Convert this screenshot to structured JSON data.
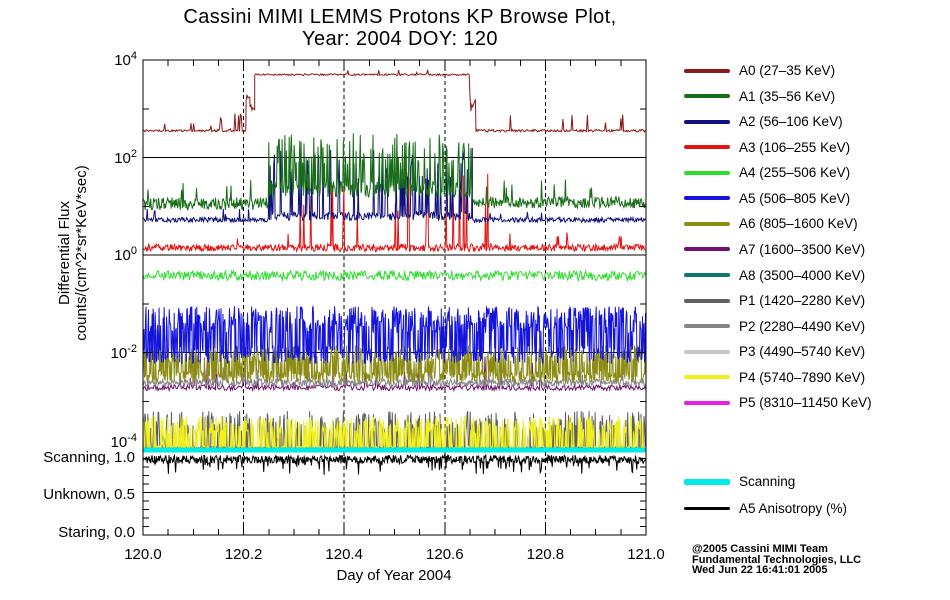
{
  "title": {
    "line1": "Cassini MIMI LEMMS Protons KP Browse Plot,",
    "line2": "Year: 2004 DOY: 120"
  },
  "axes": {
    "flux": {
      "label_line1": "Differential Flux",
      "label_line2": "counts/(cm^2*sr*KeV*sec)",
      "ticks": [
        {
          "exp": "4",
          "v": 4
        },
        {
          "exp": "2",
          "v": 2
        },
        {
          "exp": "0",
          "v": 0
        },
        {
          "exp": "-2",
          "v": -2
        },
        {
          "exp": "-4",
          "v": -4
        }
      ]
    },
    "anisotropy": {
      "ticks": [
        {
          "label": "Scanning, 1.0",
          "v": 1.0
        },
        {
          "label": "Unknown, 0.5",
          "v": 0.5
        },
        {
          "label": "Staring, 0.0",
          "v": 0.0
        }
      ]
    },
    "x": {
      "label": "Day of Year 2004",
      "ticks": [
        {
          "label": "120.0",
          "v": 120.0
        },
        {
          "label": "120.2",
          "v": 120.2
        },
        {
          "label": "120.4",
          "v": 120.4
        },
        {
          "label": "120.6",
          "v": 120.6
        },
        {
          "label": "120.8",
          "v": 120.8
        },
        {
          "label": "121.0",
          "v": 121.0
        }
      ]
    }
  },
  "legend": {
    "entries": [
      {
        "label": "A0 (27–35 KeV)",
        "color": "#8B1A1A"
      },
      {
        "label": "A1 (35–56 KeV)",
        "color": "#176E17"
      },
      {
        "label": "A2 (56–106 KeV)",
        "color": "#10107E"
      },
      {
        "label": "A3 (106–255 KeV)",
        "color": "#E31414"
      },
      {
        "label": "A4 (255–506 KeV)",
        "color": "#2EDE2E"
      },
      {
        "label": "A5 (506–805 KeV)",
        "color": "#1414DC"
      },
      {
        "label": "A6 (805–1600 KeV)",
        "color": "#8C8C14"
      },
      {
        "label": "A7 (1600–3500 KeV)",
        "color": "#701070"
      },
      {
        "label": "A8 (3500–4000 KeV)",
        "color": "#0F7474"
      },
      {
        "label": "P1 (1420–2280 KeV)",
        "color": "#5F5F5F"
      },
      {
        "label": "P2 (2280–4490 KeV)",
        "color": "#858585"
      },
      {
        "label": "P3 (4490–5740 KeV)",
        "color": "#C6C6C6"
      },
      {
        "label": "P4 (5740–7890 KeV)",
        "color": "#F0F01E"
      },
      {
        "label": "P5 (8310–11450 KeV)",
        "color": "#E61EE6"
      }
    ],
    "extra": [
      {
        "label": "Scanning",
        "color": "#00E8E8",
        "thick": 6
      },
      {
        "label": "A5 Anisotropy (%)",
        "color": "#000000",
        "thick": 3
      }
    ]
  },
  "credit": {
    "line1": "@2005 Cassini MIMI Team",
    "line2": "Fundamental Technologies, LLC",
    "line3": "Wed Jun 22 16:41:01 2005"
  },
  "chart_data": {
    "type": "line",
    "title": "Cassini MIMI LEMMS Protons KP Browse Plot, Year: 2004 DOY: 120",
    "xlabel": "Day of Year 2004",
    "x_range": [
      120.0,
      121.0
    ],
    "x_major_ticks": [
      120.0,
      120.2,
      120.4,
      120.6,
      120.8,
      121.0
    ],
    "x_minor_step": 0.05,
    "grid": {
      "v_dashed": [
        120.2,
        120.4,
        120.6,
        120.8
      ]
    },
    "panels": [
      {
        "id": "flux",
        "yscale": "log",
        "ylim_log10": [
          -4,
          4
        ],
        "ylabel": "Differential Flux counts/(cm^2*sr*KeV*sec)",
        "h_gridlines_log10": [
          2,
          0,
          -2
        ],
        "series": [
          {
            "name": "A0 (27–35 KeV)",
            "color": "#8B1A1A",
            "z": 14,
            "step": 0.0018,
            "segments": [
              {
                "x": [
                  120.0,
                  120.145
                ],
                "base": 2.55,
                "noise": 0.02,
                "spike_p": 0.05,
                "spike_hi": 2.72
              },
              {
                "x": [
                  120.145,
                  120.205
                ],
                "base": 2.56,
                "noise": 0.03,
                "spike_p": 0.2,
                "spike_hi": 2.95
              },
              {
                "x": [
                  120.205,
                  120.213
                ],
                "base": 3.25,
                "noise": 0.12
              },
              {
                "x": [
                  120.213,
                  120.222
                ],
                "base": 3.05,
                "noise": 0.1
              },
              {
                "x": [
                  120.222,
                  120.65
                ],
                "base": 3.7,
                "noise": 0.018,
                "spike_p": 0.04,
                "spike_hi": 3.8
              },
              {
                "x": [
                  120.65,
                  120.662
                ],
                "base": 3.2,
                "noise": 0.25
              },
              {
                "x": [
                  120.662,
                  121.0
                ],
                "base": 2.55,
                "noise": 0.025,
                "spike_p": 0.05,
                "spike_hi": 2.92
              }
            ]
          },
          {
            "name": "A1 (35–56 KeV)",
            "color": "#176E17",
            "z": 13,
            "step": 0.0014,
            "segments": [
              {
                "x": [
                  120.0,
                  120.25
                ],
                "base": 1.05,
                "noise": 0.13,
                "spike_p": 0.07,
                "spike_hi": 1.55
              },
              {
                "x": [
                  120.25,
                  120.655
                ],
                "base": 1.35,
                "noise": 0.17,
                "spike_p": 0.28,
                "spike_hi": 2.5
              },
              {
                "x": [
                  120.655,
                  121.0
                ],
                "base": 1.08,
                "noise": 0.12,
                "spike_p": 0.06,
                "spike_hi": 1.55
              }
            ]
          },
          {
            "name": "A2 (56–106 KeV)",
            "color": "#10107E",
            "z": 12,
            "step": 0.0014,
            "segments": [
              {
                "x": [
                  120.0,
                  120.25
                ],
                "base": 0.72,
                "noise": 0.05,
                "spike_p": 0.02,
                "spike_hi": 0.95
              },
              {
                "x": [
                  120.25,
                  120.655
                ],
                "base": 0.8,
                "noise": 0.09,
                "spike_p": 0.17,
                "spike_hi": 2.2
              },
              {
                "x": [
                  120.655,
                  121.0
                ],
                "base": 0.72,
                "noise": 0.05,
                "spike_p": 0.02,
                "spike_hi": 0.92
              }
            ]
          },
          {
            "name": "A3 (106–255 KeV)",
            "color": "#E31414",
            "z": 11,
            "step": 0.0014,
            "segments": [
              {
                "x": [
                  120.0,
                  120.3
                ],
                "base": 0.15,
                "noise": 0.07,
                "spike_p": 0.03,
                "spike_hi": 0.5
              },
              {
                "x": [
                  120.3,
                  120.52
                ],
                "base": 0.15,
                "noise": 0.08,
                "spike_p": 0.07,
                "spike_hi": 1.65
              },
              {
                "x": [
                  120.52,
                  120.7
                ],
                "base": 0.15,
                "noise": 0.08,
                "spike_p": 0.09,
                "spike_hi": 1.75
              },
              {
                "x": [
                  120.7,
                  121.0
                ],
                "base": 0.15,
                "noise": 0.07,
                "spike_p": 0.03,
                "spike_hi": 0.5
              }
            ]
          },
          {
            "name": "A4 (255–506 KeV)",
            "color": "#2EDE2E",
            "z": 10,
            "step": 0.0018,
            "segments": [
              {
                "x": [
                  120.0,
                  121.0
                ],
                "base": -0.42,
                "noise": 0.1
              }
            ]
          },
          {
            "name": "A5 (506–805 KeV)",
            "color": "#1414DC",
            "z": 9,
            "step": 0.001,
            "segments": [
              {
                "x": [
                  120.0,
                  121.0
                ],
                "base": -2.05,
                "noise": 0.18,
                "spike_p": 0.6,
                "spike_hi": -1.05
              }
            ]
          },
          {
            "name": "A6 (805–1600 KeV)",
            "color": "#8C8C14",
            "z": 8,
            "step": 0.001,
            "segments": [
              {
                "x": [
                  120.0,
                  121.0
                ],
                "base": -2.5,
                "noise": 0.12,
                "spike_p": 0.4,
                "spike_hi": -1.85
              }
            ]
          },
          {
            "name": "A7 (1600–3500 KeV)",
            "color": "#701070",
            "z": 6,
            "step": 0.002,
            "segments": [
              {
                "x": [
                  120.0,
                  121.0
                ],
                "base": -2.72,
                "noise": 0.06,
                "spike_p": 0.05,
                "spike_hi": -2.05,
                "spike_lo": -3.3
              }
            ]
          },
          {
            "name": "A8 (3500–4000 KeV)",
            "color": "#0F7474",
            "z": 1,
            "step": 0.004,
            "segments": [
              {
                "x": [
                  120.0,
                  121.0
                ],
                "base": -3.95,
                "noise": 0.02,
                "spike_p": 0.015,
                "spike_hi": -3.6
              }
            ]
          },
          {
            "name": "P1 (1420–2280 KeV)",
            "color": "#5F5F5F",
            "z": 4,
            "step": 0.0012,
            "segments": [
              {
                "x": [
                  120.0,
                  121.0
                ],
                "base": -3.96,
                "noise": 0.03,
                "spike_p": 0.3,
                "spike_hi": -3.2
              }
            ]
          },
          {
            "name": "P2 (2280–4490 KeV)",
            "color": "#858585",
            "z": 7,
            "step": 0.0014,
            "segments": [
              {
                "x": [
                  120.0,
                  121.0
                ],
                "base": -2.62,
                "noise": 0.08,
                "spike_p": 0.04,
                "spike_hi": -2.3
              }
            ]
          },
          {
            "name": "P3 (4490–5740 KeV)",
            "color": "#C6C6C6",
            "z": 3,
            "step": 0.0014,
            "segments": [
              {
                "x": [
                  120.0,
                  121.0
                ],
                "base": -3.96,
                "noise": 0.02,
                "spike_p": 0.12,
                "spike_hi": -3.45
              }
            ]
          },
          {
            "name": "P4 (5740–7890 KeV)",
            "color": "#F0F01E",
            "z": 5,
            "step": 0.0012,
            "segments": [
              {
                "x": [
                  120.0,
                  121.0
                ],
                "base": -3.95,
                "noise": 0.03,
                "spike_p": 0.42,
                "spike_hi": -3.3
              }
            ]
          },
          {
            "name": "P5 (8310–11450 KeV)",
            "color": "#E61EE6",
            "z": 2,
            "step": 0.004,
            "segments": [
              {
                "x": [
                  120.0,
                  121.0
                ],
                "base": -3.97,
                "noise": 0.02,
                "spike_p": 0.02,
                "spike_hi": -3.65
              }
            ]
          }
        ]
      },
      {
        "id": "anisotropy",
        "yscale": "linear",
        "ylim": [
          0.0,
          1.0
        ],
        "ytick_values": [
          1.0,
          0.5,
          0.0
        ],
        "ytick_labels": [
          "Scanning, 1.0",
          "Unknown, 0.5",
          "Staring, 0.0"
        ],
        "h_gridlines": [
          0.5
        ],
        "series": [
          {
            "name": "Scanning",
            "color": "#00E8E8",
            "type": "hline",
            "y": 1.0,
            "width": 5
          },
          {
            "name": "A5 Anisotropy (%)",
            "color": "#000000",
            "z": 1,
            "step": 0.0012,
            "segments": [
              {
                "x": [
                  120.0,
                  121.0
                ],
                "base": 0.89,
                "noise": 0.05,
                "dip_p": 0.12,
                "dip_lo": 0.7
              }
            ]
          }
        ]
      }
    ]
  }
}
